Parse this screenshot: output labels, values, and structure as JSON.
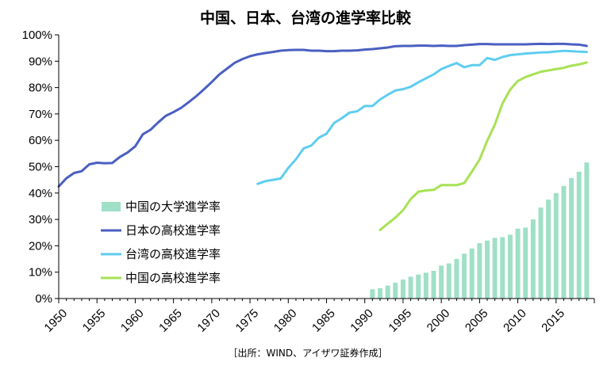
{
  "chart_data": {
    "type": "bar+line",
    "title": "中国、日本、台湾の進学率比較",
    "source": "［出所：WIND、アイザワ証券作成］",
    "x_axis": {
      "range": [
        1950,
        2020
      ],
      "tick_labels": [
        "1950",
        "1955",
        "1960",
        "1965",
        "1970",
        "1975",
        "1980",
        "1985",
        "1990",
        "1995",
        "2000",
        "2005",
        "2010",
        "2015"
      ],
      "tick_values": [
        1950,
        1955,
        1960,
        1965,
        1970,
        1975,
        1980,
        1985,
        1990,
        1995,
        2000,
        2005,
        2010,
        2015
      ]
    },
    "y_axis": {
      "range": [
        0,
        100
      ],
      "tick_labels": [
        "0%",
        "10%",
        "20%",
        "30%",
        "40%",
        "50%",
        "60%",
        "70%",
        "80%",
        "90%",
        "100%"
      ],
      "tick_values": [
        0,
        10,
        20,
        30,
        40,
        50,
        60,
        70,
        80,
        90,
        100
      ],
      "grid": false
    },
    "legend": {
      "placement": "center-left"
    },
    "series": [
      {
        "name": "中国の大学進学率",
        "type": "bar",
        "color": "#9fe0c7",
        "x": [
          1991,
          1992,
          1993,
          1994,
          1995,
          1996,
          1997,
          1998,
          1999,
          2000,
          2001,
          2002,
          2003,
          2004,
          2005,
          2006,
          2007,
          2008,
          2009,
          2010,
          2011,
          2012,
          2013,
          2014,
          2015,
          2016,
          2017,
          2018,
          2019
        ],
        "values": [
          3.5,
          3.9,
          4.9,
          6.0,
          7.2,
          8.3,
          9.1,
          9.8,
          10.5,
          12.5,
          13.3,
          15.0,
          17.0,
          19.0,
          21.0,
          22.0,
          23.0,
          23.3,
          24.2,
          26.5,
          26.9,
          30.0,
          34.5,
          37.5,
          40.0,
          42.7,
          45.7,
          48.1,
          51.6
        ]
      },
      {
        "name": "日本の高校進学率",
        "type": "line",
        "color": "#4a5fc1",
        "x": [
          1950,
          1951,
          1952,
          1953,
          1954,
          1955,
          1956,
          1957,
          1958,
          1959,
          1960,
          1961,
          1962,
          1963,
          1964,
          1965,
          1966,
          1967,
          1968,
          1969,
          1970,
          1971,
          1972,
          1973,
          1974,
          1975,
          1976,
          1977,
          1978,
          1979,
          1980,
          1981,
          1982,
          1983,
          1984,
          1985,
          1986,
          1987,
          1988,
          1989,
          1990,
          1991,
          1992,
          1993,
          1994,
          1995,
          1996,
          1997,
          1998,
          1999,
          2000,
          2001,
          2002,
          2003,
          2004,
          2005,
          2006,
          2007,
          2008,
          2009,
          2010,
          2011,
          2012,
          2013,
          2014,
          2015,
          2016,
          2017,
          2018,
          2019
        ],
        "values": [
          42.5,
          45.6,
          47.6,
          48.3,
          50.9,
          51.5,
          51.3,
          51.4,
          53.7,
          55.4,
          57.7,
          62.3,
          64.0,
          66.8,
          69.3,
          70.7,
          72.3,
          74.5,
          76.8,
          79.4,
          82.1,
          85.0,
          87.2,
          89.4,
          90.8,
          91.9,
          92.6,
          93.1,
          93.5,
          94.0,
          94.2,
          94.3,
          94.3,
          94.0,
          94.0,
          93.8,
          93.8,
          94.0,
          94.0,
          94.1,
          94.4,
          94.6,
          94.9,
          95.2,
          95.7,
          95.8,
          95.8,
          95.9,
          95.9,
          95.8,
          95.9,
          95.8,
          95.8,
          96.1,
          96.3,
          96.5,
          96.5,
          96.4,
          96.4,
          96.4,
          96.4,
          96.4,
          96.5,
          96.6,
          96.5,
          96.6,
          96.6,
          96.4,
          96.3,
          95.8
        ]
      },
      {
        "name": "台湾の高校進学率",
        "type": "line",
        "color": "#5ecdf0",
        "x": [
          1976,
          1977,
          1978,
          1979,
          1980,
          1981,
          1982,
          1983,
          1984,
          1985,
          1986,
          1987,
          1988,
          1989,
          1990,
          1991,
          1992,
          1993,
          1994,
          1995,
          1996,
          1997,
          1998,
          1999,
          2000,
          2001,
          2002,
          2003,
          2004,
          2005,
          2006,
          2007,
          2008,
          2009,
          2010,
          2011,
          2012,
          2013,
          2014,
          2015,
          2016,
          2017,
          2018,
          2019
        ],
        "values": [
          43.5,
          44.5,
          45.0,
          45.5,
          49.5,
          52.8,
          56.9,
          58.0,
          61.0,
          62.5,
          66.6,
          68.4,
          70.5,
          71.0,
          73.0,
          73.0,
          75.5,
          77.3,
          78.9,
          79.4,
          80.3,
          82.0,
          83.5,
          85.0,
          87.0,
          88.2,
          89.3,
          87.7,
          88.5,
          88.5,
          91.2,
          90.5,
          91.6,
          92.3,
          92.6,
          92.9,
          93.1,
          93.3,
          93.4,
          93.7,
          93.9,
          93.8,
          93.6,
          93.5
        ]
      },
      {
        "name": "中国の高校進学率",
        "type": "line",
        "color": "#a7e254",
        "x": [
          1992,
          1993,
          1994,
          1995,
          1996,
          1997,
          1998,
          1999,
          2000,
          2001,
          2002,
          2003,
          2004,
          2005,
          2006,
          2007,
          2008,
          2009,
          2010,
          2011,
          2012,
          2013,
          2014,
          2015,
          2016,
          2017,
          2018,
          2019
        ],
        "values": [
          26.0,
          28.4,
          30.7,
          33.5,
          37.7,
          40.5,
          41.0,
          41.2,
          43.0,
          43.0,
          43.0,
          43.8,
          48.1,
          52.7,
          59.8,
          66.0,
          74.0,
          79.2,
          82.5,
          84.0,
          85.0,
          86.0,
          86.5,
          87.0,
          87.5,
          88.3,
          88.8,
          89.5
        ]
      }
    ]
  }
}
